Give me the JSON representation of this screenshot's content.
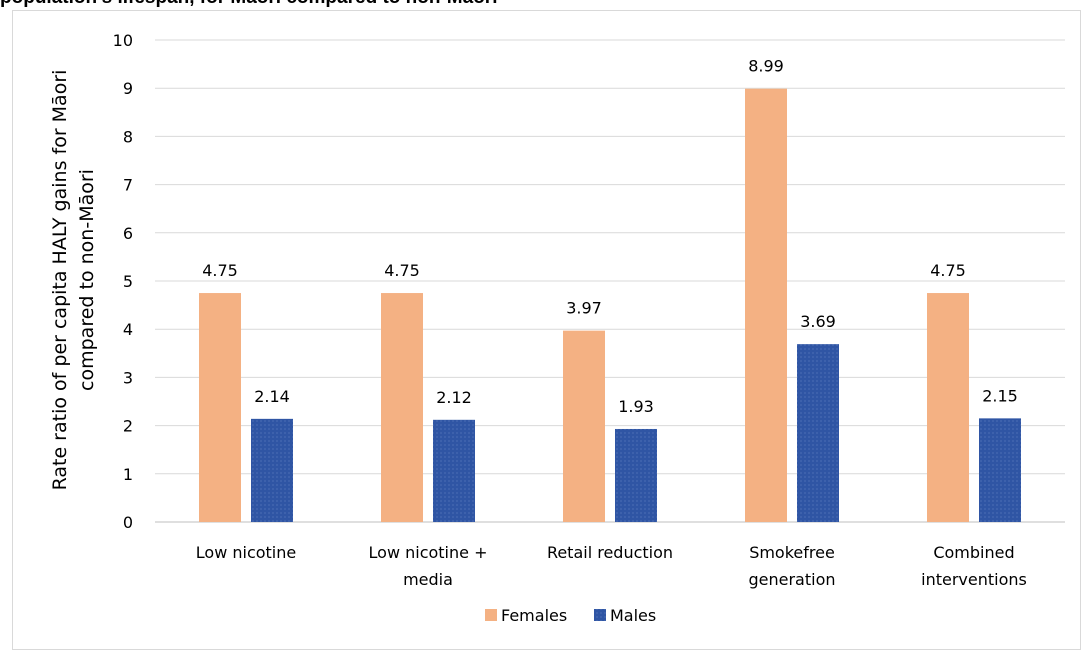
{
  "page_title": "population's lifespan, for Māori compared to non-Māori",
  "colors": {
    "females": "#f4b183",
    "males": "#2f55a4",
    "grid": "#d9d9d9",
    "axis": "#bfbfbf"
  },
  "chart_data": {
    "type": "bar",
    "title": "population's lifespan, for Māori compared to non-Māori",
    "ylabel_lines": [
      "Rate ratio of per capita HALY gains for Māori",
      "compared to non-Māori"
    ],
    "xlabel": "",
    "ylim": [
      0,
      10
    ],
    "yticks": [
      0,
      1,
      2,
      3,
      4,
      5,
      6,
      7,
      8,
      9,
      10
    ],
    "grid": "horizontal",
    "legend_position": "bottom",
    "categories": [
      [
        "Low nicotine"
      ],
      [
        "Low nicotine +",
        "media"
      ],
      [
        "Retail reduction"
      ],
      [
        "Smokefree",
        "generation"
      ],
      [
        "Combined",
        "interventions"
      ]
    ],
    "series": [
      {
        "name": "Females",
        "color": "#f4b183",
        "values": [
          4.75,
          4.75,
          3.97,
          8.99,
          4.75
        ],
        "labels": [
          "4.75",
          "4.75",
          "3.97",
          "8.99",
          "4.75"
        ]
      },
      {
        "name": "Males",
        "color": "#2f55a4",
        "values": [
          2.14,
          2.12,
          1.93,
          3.69,
          2.15
        ],
        "labels": [
          "2.14",
          "2.12",
          "1.93",
          "3.69",
          "2.15"
        ]
      }
    ]
  }
}
